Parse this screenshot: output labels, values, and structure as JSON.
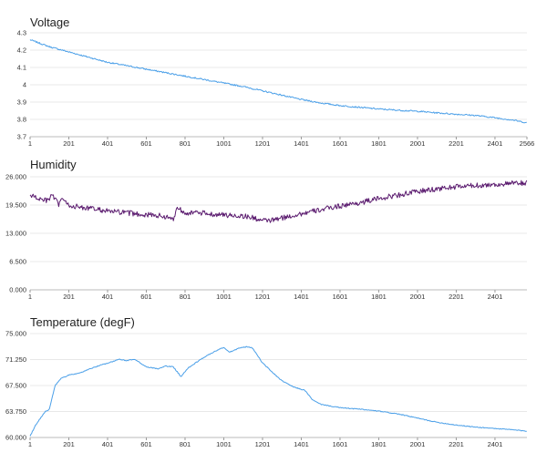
{
  "chart_data": [
    {
      "type": "line",
      "title": "Voltage",
      "xlabel": "",
      "ylabel": "",
      "x_range": [
        1,
        2566
      ],
      "ylim": [
        3.7,
        4.3
      ],
      "y_ticks": [
        "4.3",
        "4.2",
        "4.1",
        "4",
        "3.9",
        "3.8",
        "3.7"
      ],
      "y_tick_values": [
        4.3,
        4.2,
        4.1,
        4.0,
        3.9,
        3.8,
        3.7
      ],
      "x_ticks": [
        "1",
        "201",
        "401",
        "601",
        "801",
        "1001",
        "1201",
        "1401",
        "1601",
        "1801",
        "2001",
        "2201",
        "2401",
        "2566"
      ],
      "x_tick_values": [
        1,
        201,
        401,
        601,
        801,
        1001,
        1201,
        1401,
        1601,
        1801,
        2001,
        2201,
        2401,
        2566
      ],
      "grid": true,
      "color": "#4a9fe8",
      "series": [
        {
          "name": "",
          "x": [
            1,
            100,
            200,
            300,
            400,
            500,
            600,
            700,
            800,
            900,
            1000,
            1100,
            1200,
            1300,
            1400,
            1500,
            1600,
            1700,
            1800,
            1900,
            2000,
            2100,
            2200,
            2300,
            2400,
            2500,
            2566
          ],
          "y": [
            4.26,
            4.22,
            4.19,
            4.16,
            4.13,
            4.11,
            4.09,
            4.07,
            4.05,
            4.03,
            4.01,
            3.99,
            3.965,
            3.94,
            3.915,
            3.895,
            3.88,
            3.87,
            3.86,
            3.853,
            3.847,
            3.838,
            3.83,
            3.823,
            3.81,
            3.795,
            3.78
          ],
          "noise": 0.004
        }
      ]
    },
    {
      "type": "line",
      "title": "Humidity",
      "xlabel": "",
      "ylabel": "",
      "x_range": [
        1,
        2566
      ],
      "ylim": [
        0,
        26
      ],
      "y_ticks": [
        "26.000",
        "19.500",
        "13.000",
        "6.500",
        "0.000"
      ],
      "y_tick_values": [
        26,
        19.5,
        13,
        6.5,
        0
      ],
      "x_ticks": [
        "1",
        "201",
        "401",
        "601",
        "801",
        "1001",
        "1201",
        "1401",
        "1601",
        "1801",
        "2001",
        "2201",
        "2401"
      ],
      "x_tick_values": [
        1,
        201,
        401,
        601,
        801,
        1001,
        1201,
        1401,
        1601,
        1801,
        2001,
        2201,
        2401
      ],
      "grid": true,
      "color": "#5a1a6e",
      "series": [
        {
          "name": "",
          "x": [
            1,
            60,
            100,
            110,
            150,
            160,
            200,
            260,
            300,
            360,
            420,
            480,
            540,
            600,
            660,
            700,
            740,
            760,
            800,
            900,
            1000,
            1100,
            1150,
            1200,
            1250,
            1300,
            1400,
            1500,
            1600,
            1700,
            1800,
            1900,
            2000,
            2100,
            2200,
            2300,
            2400,
            2500,
            2566
          ],
          "y": [
            21.8,
            20.7,
            20.5,
            22.0,
            19.5,
            21.2,
            19.4,
            19.0,
            18.8,
            18.4,
            18.0,
            17.8,
            17.5,
            17.3,
            17.1,
            16.8,
            16.2,
            19.0,
            17.8,
            17.6,
            17.2,
            17.0,
            16.6,
            15.9,
            16.0,
            16.5,
            17.5,
            18.4,
            19.3,
            20.0,
            21.0,
            21.8,
            22.6,
            23.2,
            23.7,
            24.0,
            24.2,
            24.5,
            24.6
          ],
          "noise": 0.6
        }
      ]
    },
    {
      "type": "line",
      "title": "Temperature (degF)",
      "xlabel": "",
      "ylabel": "",
      "x_range": [
        1,
        2566
      ],
      "ylim": [
        60,
        75
      ],
      "y_ticks": [
        "75.000",
        "71.250",
        "67.500",
        "63.750",
        "60.000"
      ],
      "y_tick_values": [
        75,
        71.25,
        67.5,
        63.75,
        60
      ],
      "x_ticks": [
        "1",
        "201",
        "401",
        "601",
        "801",
        "1001",
        "1201",
        "1401",
        "1601",
        "1801",
        "2001",
        "2201",
        "2401"
      ],
      "x_tick_values": [
        1,
        201,
        401,
        601,
        801,
        1001,
        1201,
        1401,
        1601,
        1801,
        2001,
        2201,
        2401
      ],
      "grid": true,
      "color": "#4a9fe8",
      "series": [
        {
          "name": "",
          "x": [
            1,
            30,
            60,
            80,
            100,
            130,
            160,
            200,
            260,
            300,
            360,
            420,
            460,
            500,
            540,
            600,
            660,
            700,
            740,
            780,
            820,
            900,
            960,
            1000,
            1030,
            1080,
            1120,
            1150,
            1200,
            1260,
            1300,
            1360,
            1420,
            1460,
            1500,
            1600,
            1700,
            1800,
            1900,
            2000,
            2100,
            2200,
            2300,
            2400,
            2500,
            2566
          ],
          "y": [
            60.2,
            61.8,
            63.0,
            63.8,
            64.0,
            67.5,
            68.5,
            69.0,
            69.3,
            69.8,
            70.4,
            70.9,
            71.3,
            71.1,
            71.3,
            70.2,
            69.9,
            70.3,
            70.2,
            68.8,
            70.1,
            71.6,
            72.5,
            73.0,
            72.3,
            72.9,
            73.1,
            72.9,
            70.8,
            69.2,
            68.2,
            67.3,
            66.8,
            65.4,
            64.8,
            64.3,
            64.1,
            63.8,
            63.4,
            62.8,
            62.2,
            61.8,
            61.5,
            61.3,
            61.1,
            60.9
          ],
          "noise": 0.06
        }
      ]
    }
  ]
}
